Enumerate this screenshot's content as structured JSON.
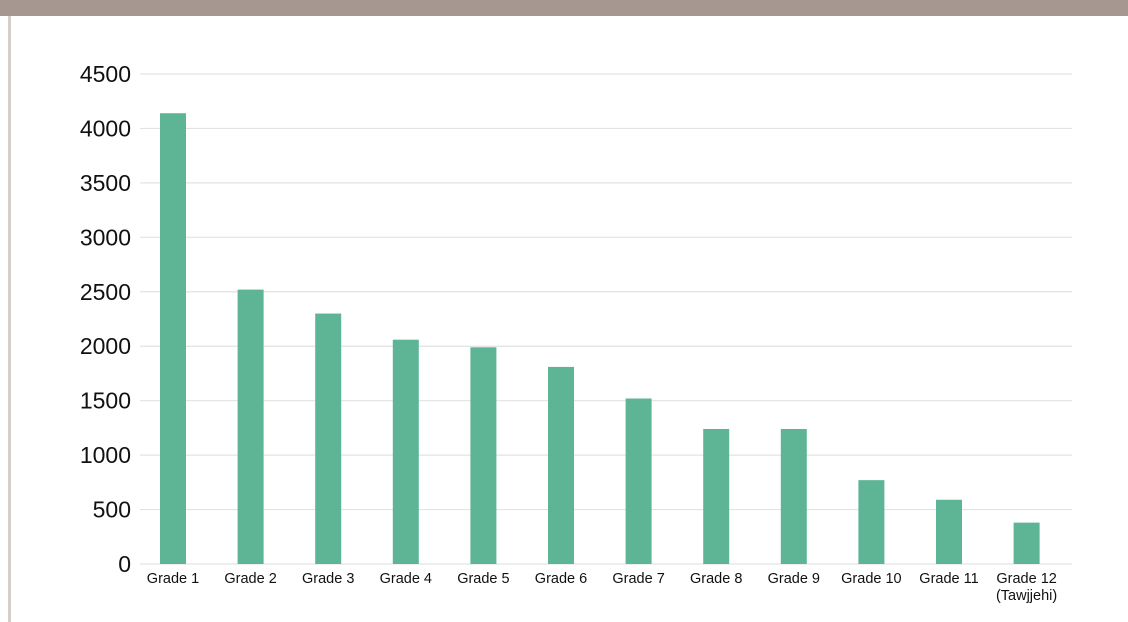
{
  "theme": {
    "top_band_color": "#a69890",
    "left_rule_color": "#d6cec8",
    "bar_color": "#5db595",
    "grid_color": "#e3e3e3"
  },
  "chart_data": {
    "type": "bar",
    "title": "",
    "xlabel": "",
    "ylabel": "",
    "categories": [
      [
        "Grade 1"
      ],
      [
        "Grade 2"
      ],
      [
        "Grade 3"
      ],
      [
        "Grade 4"
      ],
      [
        "Grade 5"
      ],
      [
        "Grade 6"
      ],
      [
        "Grade 7"
      ],
      [
        "Grade 8"
      ],
      [
        "Grade 9"
      ],
      [
        "Grade 10"
      ],
      [
        "Grade 11"
      ],
      [
        "Grade 12",
        "(Tawjjehi)"
      ]
    ],
    "values": [
      4140,
      2520,
      2300,
      2060,
      1990,
      1810,
      1520,
      1240,
      1240,
      770,
      590,
      380
    ],
    "ylim": [
      0,
      4500
    ],
    "yticks": [
      0,
      500,
      1000,
      1500,
      2000,
      2500,
      3000,
      3500,
      4000,
      4500
    ],
    "grid": true,
    "legend": "none"
  }
}
